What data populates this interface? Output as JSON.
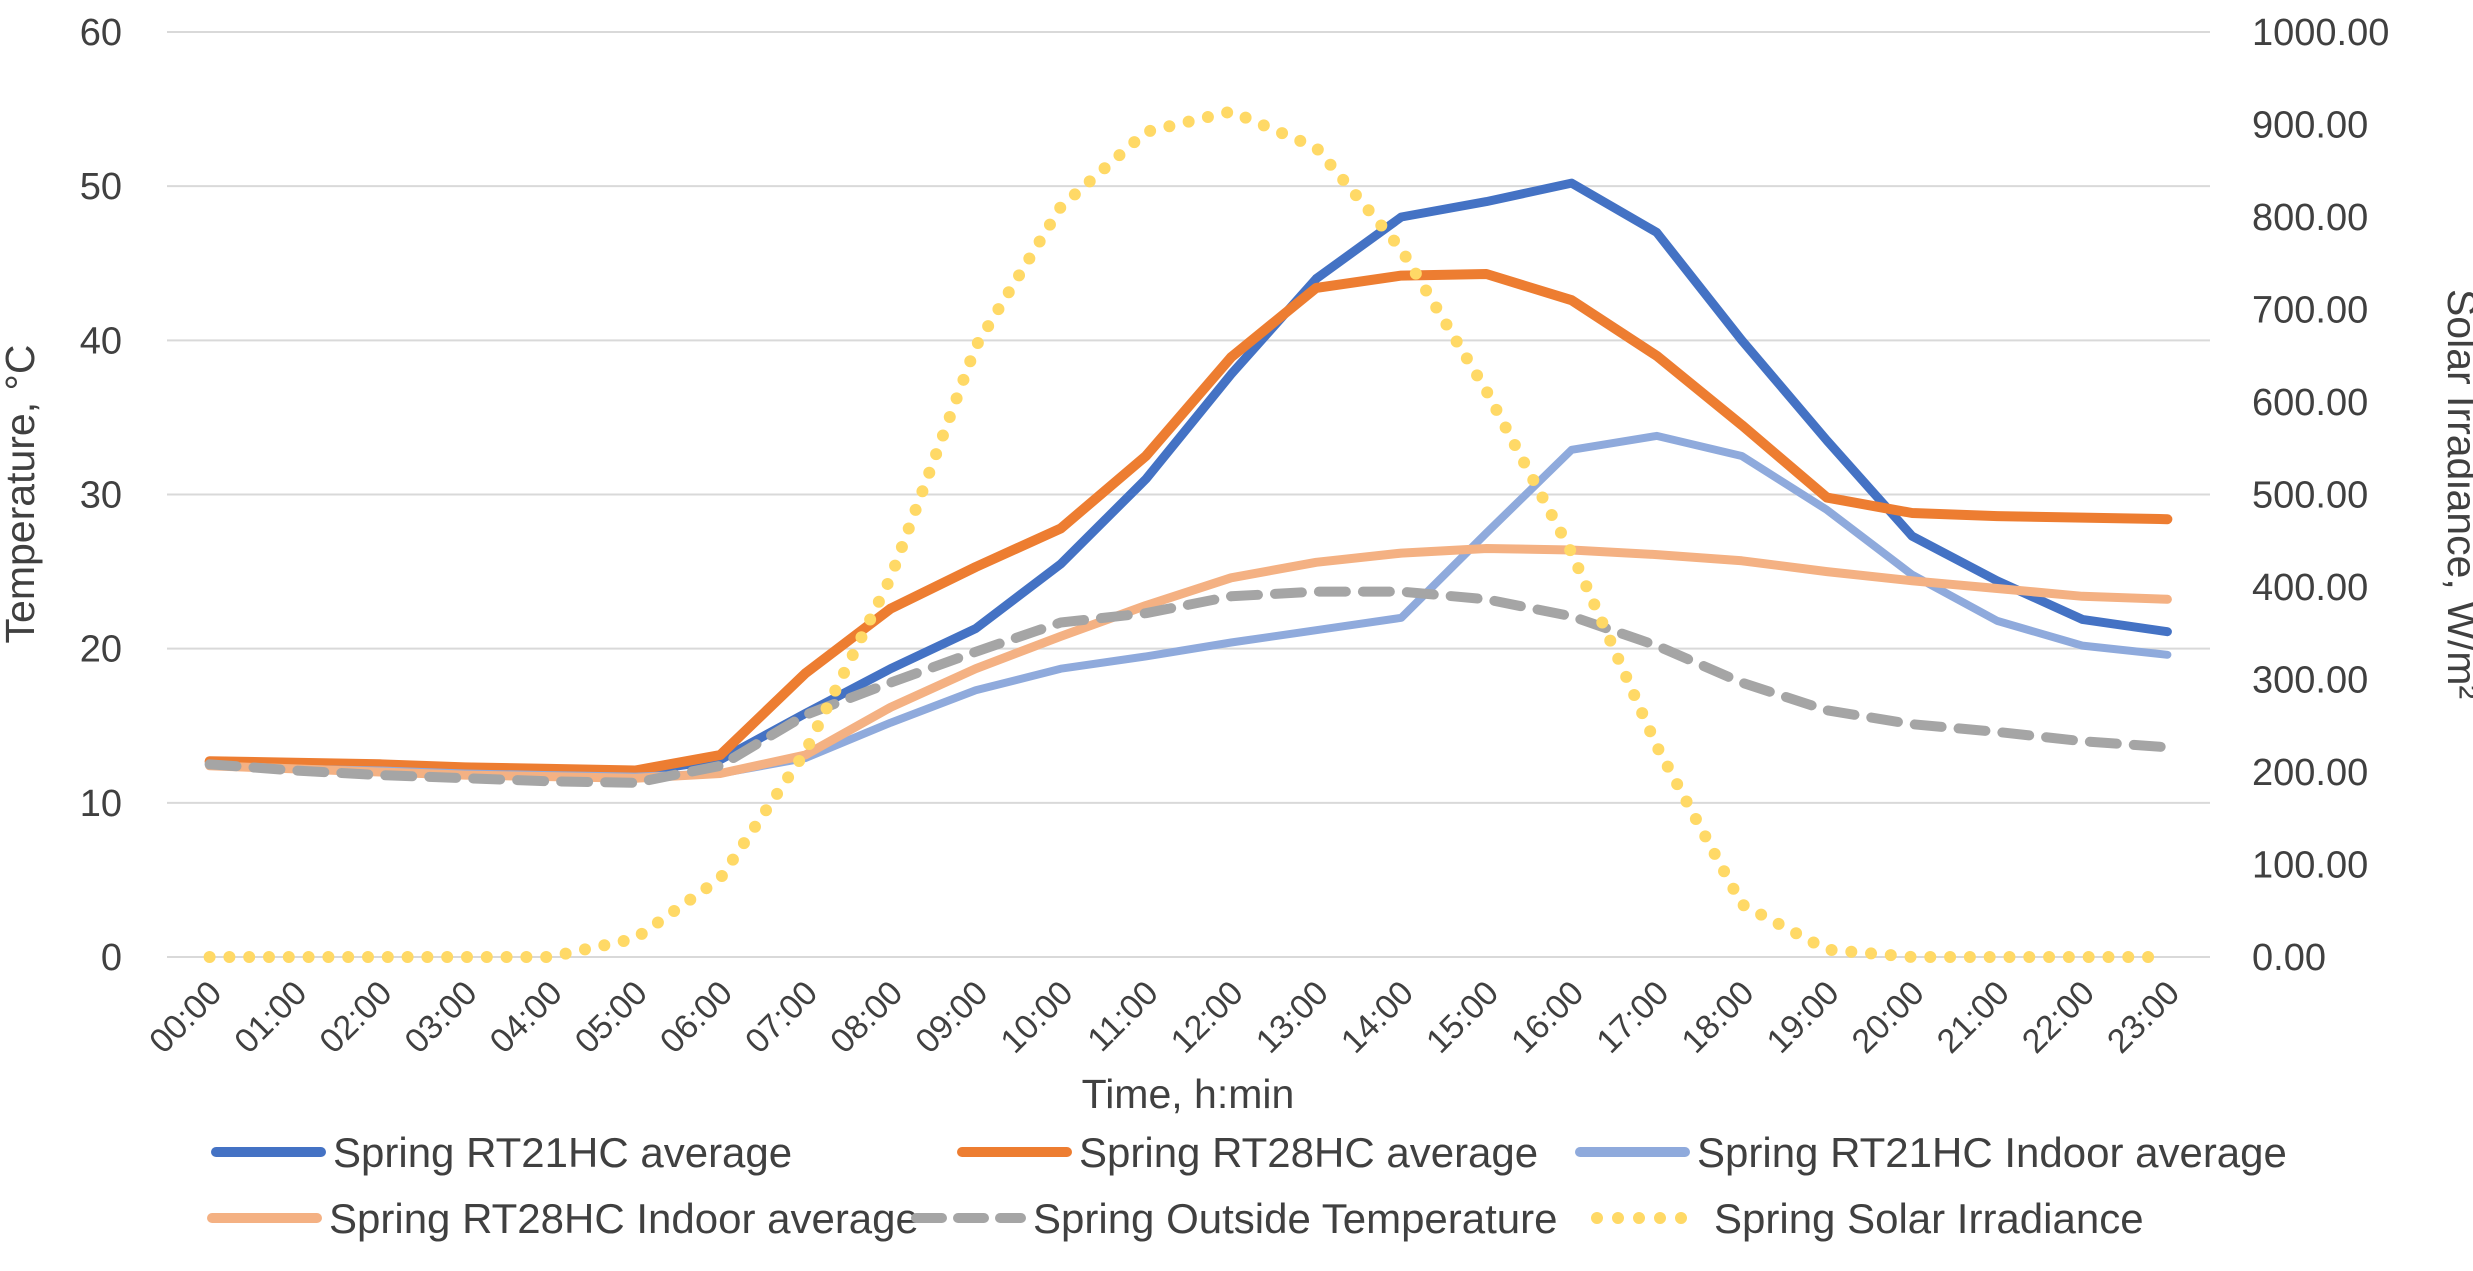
{
  "chart_data": {
    "type": "line",
    "title": "",
    "xlabel": "Time, h:min",
    "ylabel_left": "Temperature, °C",
    "ylabel_right": "Solar Irradiance, W/m²",
    "ylim_left": [
      0,
      60
    ],
    "ylim_right": [
      0,
      1000
    ],
    "grid": true,
    "legend_position": "bottom-two-rows",
    "categories": [
      "00:00",
      "01:00",
      "02:00",
      "03:00",
      "04:00",
      "05:00",
      "06:00",
      "07:00",
      "08:00",
      "09:00",
      "10:00",
      "11:00",
      "12:00",
      "13:00",
      "14:00",
      "15:00",
      "16:00",
      "17:00",
      "18:00",
      "19:00",
      "20:00",
      "21:00",
      "22:00",
      "23:00"
    ],
    "y_left_ticks": [
      "0",
      "10",
      "20",
      "30",
      "40",
      "50",
      "60"
    ],
    "y_right_ticks": [
      "0.00",
      "100.00",
      "200.00",
      "300.00",
      "400.00",
      "500.00",
      "600.00",
      "700.00",
      "800.00",
      "900.00",
      "1000.00"
    ],
    "series": [
      {
        "name": "Spring RT21HC average",
        "axis": "left",
        "color": "#4472C4",
        "style": "solid",
        "stroke_width": 9,
        "values": [
          12.6,
          12.5,
          12.4,
          12.2,
          12.1,
          12.0,
          12.8,
          15.8,
          18.7,
          21.3,
          25.5,
          31.0,
          37.8,
          44.0,
          48.0,
          49.0,
          50.2,
          47.0,
          40.0,
          33.5,
          27.3,
          24.4,
          21.9,
          21.1
        ]
      },
      {
        "name": "Spring RT28HC average",
        "axis": "left",
        "color": "#ED7D31",
        "style": "solid",
        "stroke_width": 10,
        "values": [
          12.7,
          12.6,
          12.5,
          12.3,
          12.2,
          12.1,
          13.1,
          18.4,
          22.6,
          25.3,
          27.8,
          32.5,
          38.9,
          43.4,
          44.2,
          44.3,
          42.6,
          39.0,
          34.5,
          29.8,
          28.8,
          28.6,
          28.5,
          28.4
        ]
      },
      {
        "name": "Spring RT21HC Indoor average",
        "axis": "left",
        "color": "#8FAADC",
        "style": "solid",
        "stroke_width": 8,
        "values": [
          12.4,
          12.2,
          12.1,
          11.9,
          11.8,
          11.7,
          11.9,
          12.9,
          15.2,
          17.3,
          18.7,
          19.5,
          20.4,
          21.2,
          22.0,
          27.5,
          32.9,
          33.8,
          32.5,
          29.0,
          24.8,
          21.8,
          20.2,
          19.6
        ]
      },
      {
        "name": "Spring RT28HC Indoor average",
        "axis": "left",
        "color": "#F4B183",
        "style": "solid",
        "stroke_width": 9,
        "values": [
          12.4,
          12.2,
          12.0,
          11.8,
          11.7,
          11.6,
          11.9,
          13.1,
          16.2,
          18.7,
          20.8,
          22.8,
          24.6,
          25.6,
          26.2,
          26.5,
          26.4,
          26.1,
          25.7,
          25.0,
          24.4,
          23.9,
          23.4,
          23.2
        ]
      },
      {
        "name": "Spring Outside Temperature",
        "axis": "left",
        "color": "#A5A5A5",
        "style": "dashed",
        "stroke_width": 10,
        "values": [
          12.5,
          12.1,
          11.8,
          11.6,
          11.4,
          11.3,
          12.4,
          15.7,
          17.8,
          19.8,
          21.7,
          22.3,
          23.4,
          23.7,
          23.7,
          23.2,
          22.1,
          20.2,
          17.8,
          16.0,
          15.1,
          14.6,
          14.0,
          13.6
        ]
      },
      {
        "name": "Spring Solar Irradiance",
        "axis": "right",
        "color": "#FFD966",
        "style": "dotted",
        "stroke_width": 12,
        "values": [
          0,
          0,
          0,
          0,
          0,
          20,
          85,
          222,
          410,
          660,
          811,
          892,
          914,
          875,
          765,
          612,
          437,
          228,
          57,
          8,
          0,
          0,
          0,
          0
        ]
      }
    ]
  }
}
